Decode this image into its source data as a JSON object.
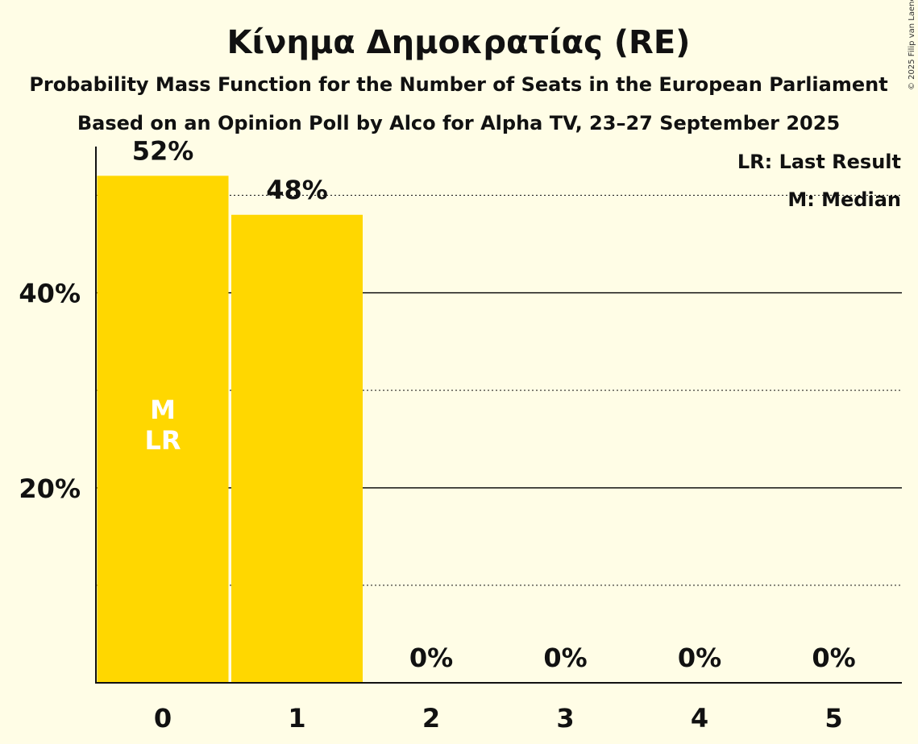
{
  "chart_data": {
    "type": "bar",
    "title": "Κίνημα Δημοκρατίας (RE)",
    "subtitle": "Probability Mass Function for the Number of Seats in the European Parliament",
    "source": "Based on an Opinion Poll by Alco for Alpha TV, 23–27 September 2025",
    "copyright": "© 2025 Filip van Laenen",
    "categories": [
      "0",
      "1",
      "2",
      "3",
      "4",
      "5"
    ],
    "values": [
      52,
      48,
      0,
      0,
      0,
      0
    ],
    "value_labels": [
      "52%",
      "48%",
      "0%",
      "0%",
      "0%",
      "0%"
    ],
    "ylim": [
      0,
      55
    ],
    "yticks": [
      {
        "value": 10,
        "label": "",
        "style": "dotted"
      },
      {
        "value": 20,
        "label": "20%",
        "style": "solid"
      },
      {
        "value": 30,
        "label": "",
        "style": "dotted"
      },
      {
        "value": 40,
        "label": "40%",
        "style": "solid"
      },
      {
        "value": 50,
        "label": "",
        "style": "dotted"
      }
    ],
    "bar_markers": [
      {
        "category": "0",
        "lines": [
          "M",
          "LR"
        ]
      }
    ],
    "legend": {
      "placement": "top-right",
      "entries": [
        "LR: Last Result",
        "M: Median"
      ]
    },
    "colors": {
      "bar": "#FFD700",
      "background": "#FFFDE6",
      "axis": "#111111",
      "bar_marker_text": "#FFFFFF"
    }
  }
}
